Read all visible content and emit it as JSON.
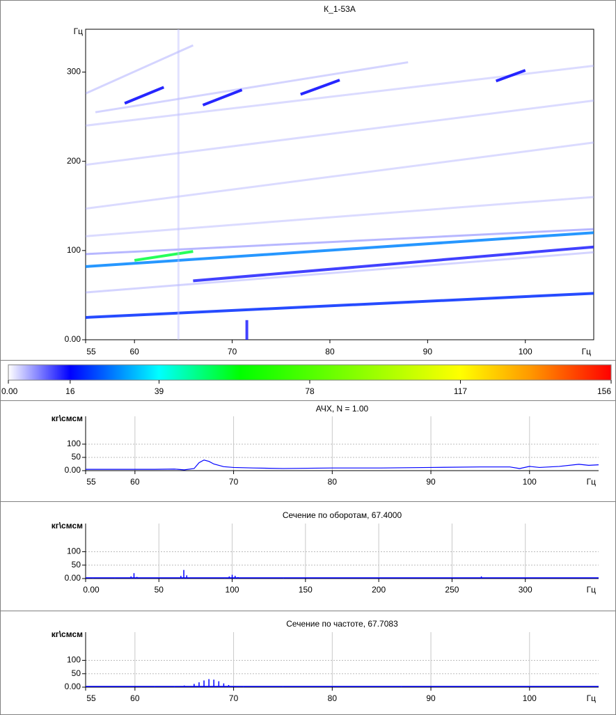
{
  "chart_data": [
    {
      "type": "spectrogram",
      "title": "К_1-53А",
      "ylabel": "Гц",
      "xlabel": "Гц",
      "xlim": [
        55,
        107
      ],
      "xticks": [
        55,
        60,
        70,
        80,
        90,
        100
      ],
      "ylim": [
        0,
        348
      ],
      "yticks": [
        {
          "value": 0,
          "label": "0.00"
        },
        100,
        200,
        300
      ],
      "grid": false,
      "series": [
        {
          "x": [
            55,
            107
          ],
          "values": [
            25,
            52
          ],
          "level": 20
        },
        {
          "x": [
            55,
            107
          ],
          "values": [
            82,
            120
          ],
          "level": 28
        },
        {
          "x": [
            60,
            66
          ],
          "values": [
            89,
            99
          ],
          "level": 55
        },
        {
          "x": [
            66,
            107
          ],
          "values": [
            66,
            104
          ],
          "level": 14
        },
        {
          "x": [
            55,
            107
          ],
          "values": [
            53,
            98
          ],
          "level": 6
        },
        {
          "x": [
            55,
            107
          ],
          "values": [
            96,
            124
          ],
          "level": 10
        },
        {
          "x": [
            55,
            107
          ],
          "values": [
            116,
            160
          ],
          "level": 5
        },
        {
          "x": [
            55,
            107
          ],
          "values": [
            147,
            221
          ],
          "level": 5
        },
        {
          "x": [
            55,
            107
          ],
          "values": [
            196,
            268
          ],
          "level": 5
        },
        {
          "x": [
            55,
            107
          ],
          "values": [
            240,
            307
          ],
          "level": 5
        },
        {
          "x": [
            55,
            66
          ],
          "values": [
            276,
            330
          ],
          "level": 6
        },
        {
          "x": [
            56,
            88
          ],
          "values": [
            255,
            311
          ],
          "level": 6
        },
        {
          "x": [
            59,
            63
          ],
          "values": [
            265,
            283
          ],
          "level": 16
        },
        {
          "x": [
            67,
            71
          ],
          "values": [
            263,
            280
          ],
          "level": 16
        },
        {
          "x": [
            77,
            81
          ],
          "values": [
            275,
            291
          ],
          "level": 16
        },
        {
          "x": [
            97,
            100
          ],
          "values": [
            290,
            302
          ],
          "level": 16
        },
        {
          "x": [
            64.5,
            64.5
          ],
          "values": [
            0,
            348
          ],
          "level": 4
        },
        {
          "x": [
            71.5,
            71.5
          ],
          "values": [
            0,
            22
          ],
          "level": 14
        }
      ]
    },
    {
      "type": "colorbar",
      "xlim": [
        0,
        156
      ],
      "xticks": [
        {
          "value": 0,
          "label": "0.00"
        },
        16,
        39,
        78,
        117,
        156
      ],
      "colors": [
        {
          "value": 0,
          "color": "#ffffff"
        },
        {
          "value": 16,
          "color": "#0000ff"
        },
        {
          "value": 39,
          "color": "#00ffff"
        },
        {
          "value": 60,
          "color": "#00ff00"
        },
        {
          "value": 117,
          "color": "#ffff00"
        },
        {
          "value": 135,
          "color": "#ff9900"
        },
        {
          "value": 156,
          "color": "#ff0000"
        }
      ]
    },
    {
      "type": "line",
      "title": "АЧХ, N = 1.00",
      "ylabel": "кг\\смсм",
      "xlabel": "Гц",
      "color": "#0000ff",
      "xlim": [
        55,
        107
      ],
      "xticks": [
        55,
        60,
        70,
        80,
        90,
        100
      ],
      "ylim": [
        0,
        205
      ],
      "yticks": [
        {
          "value": 0,
          "label": "0.00"
        },
        50,
        100
      ],
      "grid": true,
      "x": [
        55,
        58,
        62,
        64,
        65,
        66,
        66.5,
        67,
        67.5,
        68,
        69,
        70,
        72,
        75,
        80,
        85,
        90,
        95,
        98,
        99,
        100,
        101,
        103,
        105,
        106,
        107
      ],
      "values": [
        5,
        5,
        5,
        6,
        3,
        8,
        30,
        40,
        35,
        25,
        15,
        12,
        10,
        8,
        10,
        10,
        12,
        14,
        14,
        8,
        16,
        12,
        16,
        24,
        20,
        22
      ]
    },
    {
      "type": "stem",
      "title": "Сечение по оборотам, 67.4000",
      "ylabel": "кг\\смсм",
      "xlabel": "Гц",
      "color": "#0000ff",
      "xlim": [
        0,
        350
      ],
      "xticks": [
        {
          "value": 0,
          "label": "0.00"
        },
        50,
        100,
        150,
        200,
        250,
        300
      ],
      "ylim": [
        0,
        205
      ],
      "yticks": [
        {
          "value": 0,
          "label": "0.00"
        },
        50,
        100
      ],
      "grid": true,
      "x": [
        5,
        20,
        31,
        33,
        35,
        50,
        65,
        67,
        69,
        95,
        98,
        100,
        102,
        104,
        135,
        200,
        270,
        300
      ],
      "values": [
        2,
        1,
        8,
        20,
        6,
        1,
        10,
        32,
        12,
        4,
        8,
        14,
        10,
        5,
        2,
        3,
        8,
        2
      ]
    },
    {
      "type": "stem",
      "title": "Сечение по частоте, 67.7083",
      "ylabel": "кг\\смсм",
      "xlabel": "Гц",
      "color": "#0000ff",
      "xlim": [
        55,
        107
      ],
      "xticks": [
        55,
        60,
        70,
        80,
        90,
        100
      ],
      "ylim": [
        0,
        205
      ],
      "yticks": [
        {
          "value": 0,
          "label": "0.00"
        },
        50,
        100
      ],
      "grid": true,
      "x": [
        62,
        64,
        65,
        66,
        66.5,
        67,
        67.5,
        68,
        68.5,
        69,
        69.5,
        70,
        71,
        75,
        87,
        100
      ],
      "values": [
        1,
        3,
        6,
        12,
        18,
        25,
        30,
        28,
        22,
        14,
        8,
        4,
        2,
        1,
        2,
        1
      ]
    }
  ]
}
